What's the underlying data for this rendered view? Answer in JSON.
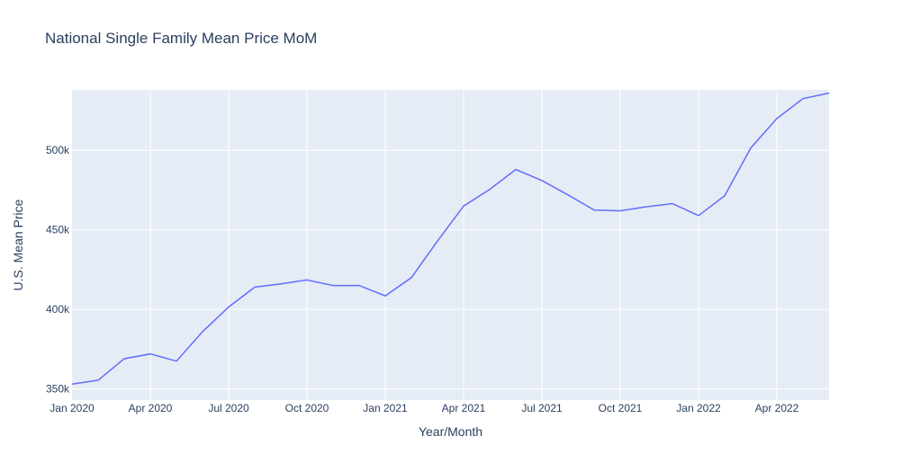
{
  "chart_data": {
    "type": "line",
    "title": "National Single Family Mean Price MoM",
    "xlabel": "Year/Month",
    "ylabel": "U.S. Mean Price",
    "x_tick_labels": [
      "Jan 2020",
      "Apr 2020",
      "Jul 2020",
      "Oct 2020",
      "Jan 2021",
      "Apr 2021",
      "Jul 2021",
      "Oct 2021",
      "Jan 2022",
      "Apr 2022"
    ],
    "y_tick_labels": [
      "350k",
      "400k",
      "450k",
      "500k"
    ],
    "y_ticks": [
      350000,
      400000,
      450000,
      500000
    ],
    "ylim": [
      343000,
      538000
    ],
    "xlim": [
      "2020-01",
      "2022-06"
    ],
    "grid": true,
    "colors": {
      "line": "#636efa",
      "plot_bg": "#e5ecf6",
      "grid": "#ffffff",
      "text": "#2a3f5f"
    },
    "series": [
      {
        "x": [
          "2020-01",
          "2020-02",
          "2020-03",
          "2020-04",
          "2020-05",
          "2020-06",
          "2020-07",
          "2020-08",
          "2020-09",
          "2020-10",
          "2020-11",
          "2020-12",
          "2021-01",
          "2021-02",
          "2021-03",
          "2021-04",
          "2021-05",
          "2021-06",
          "2021-07",
          "2021-08",
          "2021-09",
          "2021-10",
          "2021-11",
          "2021-12",
          "2022-01",
          "2022-02",
          "2022-03",
          "2022-04",
          "2022-05",
          "2022-06"
        ],
        "values": [
          353000,
          355500,
          369000,
          372000,
          367500,
          386000,
          401500,
          414000,
          416000,
          418500,
          415000,
          415000,
          408500,
          420000,
          443000,
          465000,
          475500,
          488000,
          481000,
          472000,
          462500,
          462000,
          464500,
          466500,
          459000,
          471500,
          501500,
          520000,
          532500,
          536000
        ]
      }
    ]
  }
}
